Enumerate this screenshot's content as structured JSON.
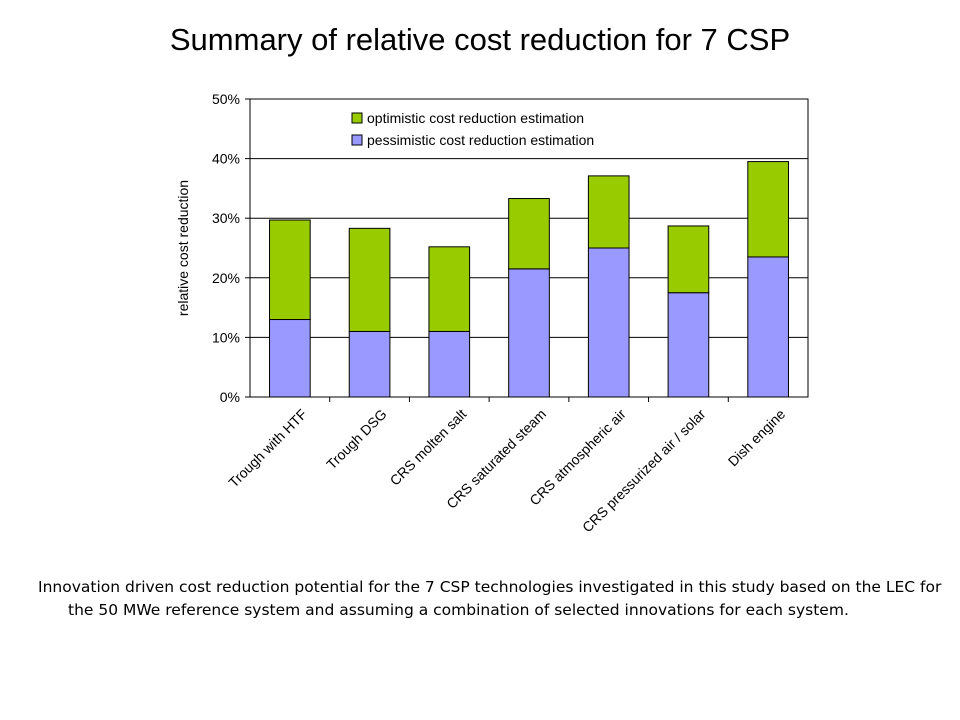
{
  "slide": {
    "title": "Summary of relative cost reduction for 7 CSP",
    "caption": "Innovation driven cost reduction potential for the 7 CSP technologies investigated in this study based on the LEC for the 50 MWe reference system and assuming a combination of selected innovations for each system."
  },
  "colors": {
    "optimistic": "#99cc00",
    "pessimistic": "#9999ff"
  },
  "chart_data": {
    "type": "bar",
    "stacked": true,
    "title": "",
    "xlabel": "",
    "ylabel": "relative cost reduction",
    "ylim": [
      0,
      0.5
    ],
    "yticks": [
      "0%",
      "10%",
      "20%",
      "30%",
      "40%",
      "50%"
    ],
    "grid": true,
    "legend_position": "top",
    "categories": [
      "Trough with HTF",
      "Trough DSG",
      "CRS molten salt",
      "CRS saturated steam",
      "CRS atmospheric air",
      "CRS pressurized air / solar",
      "Dish engine"
    ],
    "series": [
      {
        "name": "pessimistic cost reduction estimation",
        "values": [
          0.13,
          0.11,
          0.11,
          0.215,
          0.25,
          0.175,
          0.235
        ]
      },
      {
        "name": "optimistic cost reduction estimation",
        "values": [
          0.167,
          0.173,
          0.142,
          0.118,
          0.121,
          0.112,
          0.16
        ]
      }
    ],
    "legend_order": [
      "optimistic cost reduction estimation",
      "pessimistic cost reduction estimation"
    ]
  }
}
